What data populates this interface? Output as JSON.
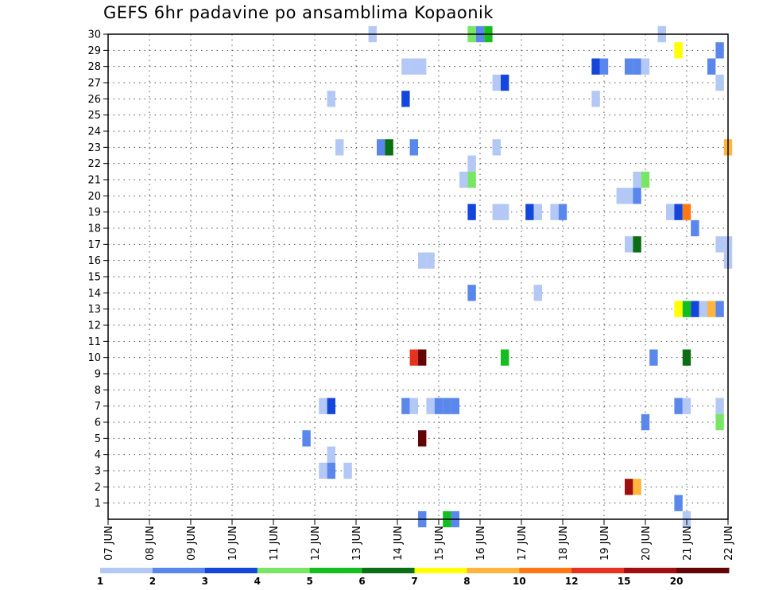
{
  "chart_data": {
    "type": "heatmap",
    "title": "GEFS 6hr padavine po ansamblima Kopaonik",
    "x_labels": [
      "07 JUN",
      "08 JUN",
      "09 JUN",
      "10 JUN",
      "11 JUN",
      "12 JUN",
      "13 JUN",
      "14 JUN",
      "15 JUN",
      "16 JUN",
      "17 JUN",
      "18 JUN",
      "19 JUN",
      "20 JUN",
      "21 JUN",
      "22 JUN"
    ],
    "y_labels": [
      "1",
      "2",
      "3",
      "4",
      "5",
      "6",
      "7",
      "8",
      "9",
      "10",
      "11",
      "12",
      "13",
      "14",
      "15",
      "16",
      "17",
      "18",
      "19",
      "20",
      "21",
      "22",
      "23",
      "24",
      "25",
      "26",
      "27",
      "28",
      "29",
      "30"
    ],
    "x_unit": "6-hour step from 07 JUN 00Z",
    "y_unit": "ensemble member (0-30)",
    "grid": true,
    "legend": {
      "placement": "bottom",
      "colors": [
        "#b4c8f5",
        "#5a87eb",
        "#1446dc",
        "#78e664",
        "#14be1e",
        "#0a6e14",
        "#ffff00",
        "#ffb43c",
        "#ff7814",
        "#e6321e",
        "#a00f0f",
        "#640505"
      ],
      "labels": [
        "1",
        "2",
        "3",
        "4",
        "5",
        "6",
        "7",
        "8",
        "10",
        "12",
        "15",
        "20"
      ]
    },
    "cells": [
      {
        "step": 32,
        "member": 30,
        "class": 1
      },
      {
        "step": 44,
        "member": 30,
        "class": 4
      },
      {
        "step": 45,
        "member": 30,
        "class": 2
      },
      {
        "step": 46,
        "member": 30,
        "class": 5
      },
      {
        "step": 67,
        "member": 30,
        "class": 1
      },
      {
        "step": 69,
        "member": 29,
        "class": 7
      },
      {
        "step": 74,
        "member": 29,
        "class": 2
      },
      {
        "step": 36,
        "member": 28,
        "class": 1
      },
      {
        "step": 37,
        "member": 28,
        "class": 1
      },
      {
        "step": 38,
        "member": 28,
        "class": 1
      },
      {
        "step": 59,
        "member": 28,
        "class": 3
      },
      {
        "step": 60,
        "member": 28,
        "class": 2
      },
      {
        "step": 63,
        "member": 28,
        "class": 2
      },
      {
        "step": 64,
        "member": 28,
        "class": 2
      },
      {
        "step": 65,
        "member": 28,
        "class": 1
      },
      {
        "step": 73,
        "member": 28,
        "class": 2
      },
      {
        "step": 47,
        "member": 27,
        "class": 1
      },
      {
        "step": 48,
        "member": 27,
        "class": 3
      },
      {
        "step": 74,
        "member": 27,
        "class": 1
      },
      {
        "step": 27,
        "member": 26,
        "class": 1
      },
      {
        "step": 36,
        "member": 26,
        "class": 3
      },
      {
        "step": 59,
        "member": 26,
        "class": 1
      },
      {
        "step": 28,
        "member": 23,
        "class": 1
      },
      {
        "step": 33,
        "member": 23,
        "class": 2
      },
      {
        "step": 34,
        "member": 23,
        "class": 6
      },
      {
        "step": 37,
        "member": 23,
        "class": 2
      },
      {
        "step": 47,
        "member": 23,
        "class": 1
      },
      {
        "step": 75,
        "member": 23,
        "class": 8
      },
      {
        "step": 44,
        "member": 22,
        "class": 1
      },
      {
        "step": 43,
        "member": 21,
        "class": 1
      },
      {
        "step": 44,
        "member": 21,
        "class": 4
      },
      {
        "step": 64,
        "member": 21,
        "class": 1
      },
      {
        "step": 65,
        "member": 21,
        "class": 4
      },
      {
        "step": 62,
        "member": 20,
        "class": 1
      },
      {
        "step": 63,
        "member": 20,
        "class": 1
      },
      {
        "step": 64,
        "member": 20,
        "class": 2
      },
      {
        "step": 44,
        "member": 19,
        "class": 3
      },
      {
        "step": 47,
        "member": 19,
        "class": 1
      },
      {
        "step": 48,
        "member": 19,
        "class": 1
      },
      {
        "step": 51,
        "member": 19,
        "class": 3
      },
      {
        "step": 52,
        "member": 19,
        "class": 1
      },
      {
        "step": 54,
        "member": 19,
        "class": 1
      },
      {
        "step": 55,
        "member": 19,
        "class": 2
      },
      {
        "step": 68,
        "member": 19,
        "class": 1
      },
      {
        "step": 69,
        "member": 19,
        "class": 3
      },
      {
        "step": 70,
        "member": 19,
        "class": 9
      },
      {
        "step": 71,
        "member": 18,
        "class": 2
      },
      {
        "step": 63,
        "member": 17,
        "class": 1
      },
      {
        "step": 64,
        "member": 17,
        "class": 6
      },
      {
        "step": 74,
        "member": 17,
        "class": 1
      },
      {
        "step": 75,
        "member": 17,
        "class": 1
      },
      {
        "step": 38,
        "member": 16,
        "class": 1
      },
      {
        "step": 39,
        "member": 16,
        "class": 1
      },
      {
        "step": 75,
        "member": 16,
        "class": 1
      },
      {
        "step": 44,
        "member": 14,
        "class": 2
      },
      {
        "step": 52,
        "member": 14,
        "class": 1
      },
      {
        "step": 69,
        "member": 13,
        "class": 7
      },
      {
        "step": 70,
        "member": 13,
        "class": 5
      },
      {
        "step": 71,
        "member": 13,
        "class": 3
      },
      {
        "step": 72,
        "member": 13,
        "class": 1
      },
      {
        "step": 73,
        "member": 13,
        "class": 8
      },
      {
        "step": 74,
        "member": 13,
        "class": 2
      },
      {
        "step": 37,
        "member": 10,
        "class": 10
      },
      {
        "step": 38,
        "member": 10,
        "class": 12
      },
      {
        "step": 48,
        "member": 10,
        "class": 5
      },
      {
        "step": 66,
        "member": 10,
        "class": 2
      },
      {
        "step": 70,
        "member": 10,
        "class": 6
      },
      {
        "step": 26,
        "member": 7,
        "class": 1
      },
      {
        "step": 27,
        "member": 7,
        "class": 3
      },
      {
        "step": 36,
        "member": 7,
        "class": 2
      },
      {
        "step": 37,
        "member": 7,
        "class": 1
      },
      {
        "step": 39,
        "member": 7,
        "class": 1
      },
      {
        "step": 40,
        "member": 7,
        "class": 2
      },
      {
        "step": 41,
        "member": 7,
        "class": 2
      },
      {
        "step": 42,
        "member": 7,
        "class": 2
      },
      {
        "step": 69,
        "member": 7,
        "class": 2
      },
      {
        "step": 70,
        "member": 7,
        "class": 1
      },
      {
        "step": 74,
        "member": 7,
        "class": 1
      },
      {
        "step": 65,
        "member": 6,
        "class": 2
      },
      {
        "step": 74,
        "member": 6,
        "class": 4
      },
      {
        "step": 24,
        "member": 5,
        "class": 2
      },
      {
        "step": 38,
        "member": 5,
        "class": 12
      },
      {
        "step": 27,
        "member": 4,
        "class": 1
      },
      {
        "step": 26,
        "member": 3,
        "class": 1
      },
      {
        "step": 27,
        "member": 3,
        "class": 2
      },
      {
        "step": 29,
        "member": 3,
        "class": 1
      },
      {
        "step": 63,
        "member": 2,
        "class": 11
      },
      {
        "step": 64,
        "member": 2,
        "class": 8
      },
      {
        "step": 69,
        "member": 1,
        "class": 2
      },
      {
        "step": 38,
        "member": 0,
        "class": 2
      },
      {
        "step": 41,
        "member": 0,
        "class": 5
      },
      {
        "step": 42,
        "member": 0,
        "class": 2
      },
      {
        "step": 70,
        "member": 0,
        "class": 1
      }
    ]
  }
}
